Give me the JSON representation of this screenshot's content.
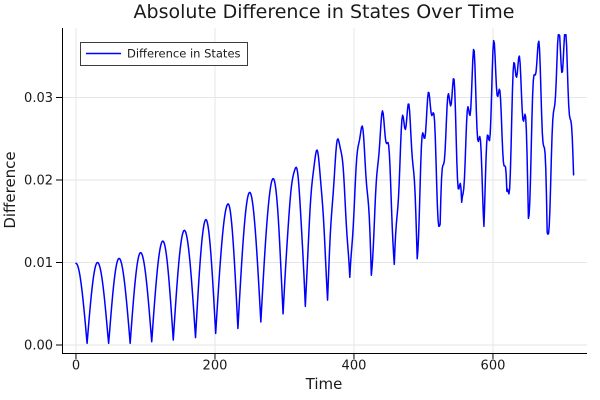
{
  "chart_data": {
    "type": "line",
    "title": "Absolute Difference in States Over Time",
    "xlabel": "Time",
    "ylabel": "Difference",
    "legend": {
      "label": "Difference in States",
      "position": "top-left"
    },
    "series_name": "Difference in States",
    "series_color": "#0000ff",
    "grid": true,
    "xlim": [
      -20.1,
      735.3
    ],
    "ylim": [
      -0.00097,
      0.03842
    ],
    "xticks": {
      "values": [
        0,
        200,
        400,
        600
      ],
      "labels": [
        "0",
        "200",
        "400",
        "600"
      ]
    },
    "yticks": {
      "values": [
        0,
        0.01,
        0.02,
        0.03
      ],
      "labels": [
        "0.00",
        "0.01",
        "0.02",
        "0.03"
      ]
    },
    "t_range": [
      0,
      716
    ],
    "extrema": [
      [
        0,
        0.0099
      ],
      [
        16,
        0.0002
      ],
      [
        31,
        0.01
      ],
      [
        47,
        0.0001
      ],
      [
        62,
        0.0105
      ],
      [
        78,
        0.0002
      ],
      [
        93,
        0.0112
      ],
      [
        109,
        0.0004
      ],
      [
        125,
        0.0126
      ],
      [
        140,
        0.0006
      ],
      [
        156,
        0.0139
      ],
      [
        172,
        0.0009
      ],
      [
        187,
        0.0152
      ],
      [
        201,
        0.0014
      ],
      [
        219,
        0.0171
      ],
      [
        233,
        0.002
      ],
      [
        250,
        0.0185
      ],
      [
        266,
        0.0028
      ],
      [
        284,
        0.0202
      ],
      [
        298,
        0.0038
      ],
      [
        316,
        0.0215
      ],
      [
        330,
        0.0046
      ],
      [
        346,
        0.0232
      ],
      [
        362,
        0.0056
      ],
      [
        378,
        0.0246
      ],
      [
        394,
        0.0071
      ],
      [
        411,
        0.0259
      ],
      [
        425,
        0.0083
      ],
      [
        443,
        0.0273
      ],
      [
        458,
        0.0097
      ],
      [
        476,
        0.0286
      ],
      [
        491,
        0.0121
      ],
      [
        508,
        0.0297
      ],
      [
        524,
        0.0136
      ],
      [
        539,
        0.0308
      ],
      [
        555,
        0.0148
      ],
      [
        571,
        0.0321
      ],
      [
        587,
        0.0153
      ],
      [
        603,
        0.0334
      ],
      [
        620,
        0.0158
      ],
      [
        636,
        0.0343
      ],
      [
        651,
        0.017
      ],
      [
        665,
        0.0351
      ],
      [
        678,
        0.0118
      ],
      [
        699,
        0.0369
      ],
      [
        716,
        0.0216
      ]
    ],
    "jitter": {
      "start": 258,
      "full": 560,
      "power": 1.6,
      "amp": 0.004,
      "components": [
        {
          "period": 9.4,
          "weight": 0.62,
          "phase": 2.1
        },
        {
          "period": 14.9,
          "weight": 0.38,
          "phase": 5.3
        }
      ]
    },
    "colors": {
      "grid": "#e6e6e6",
      "axis": "#000000",
      "text": "#1a1a1a",
      "legend_border": "#3c3c3c",
      "background": "#ffffff"
    }
  }
}
